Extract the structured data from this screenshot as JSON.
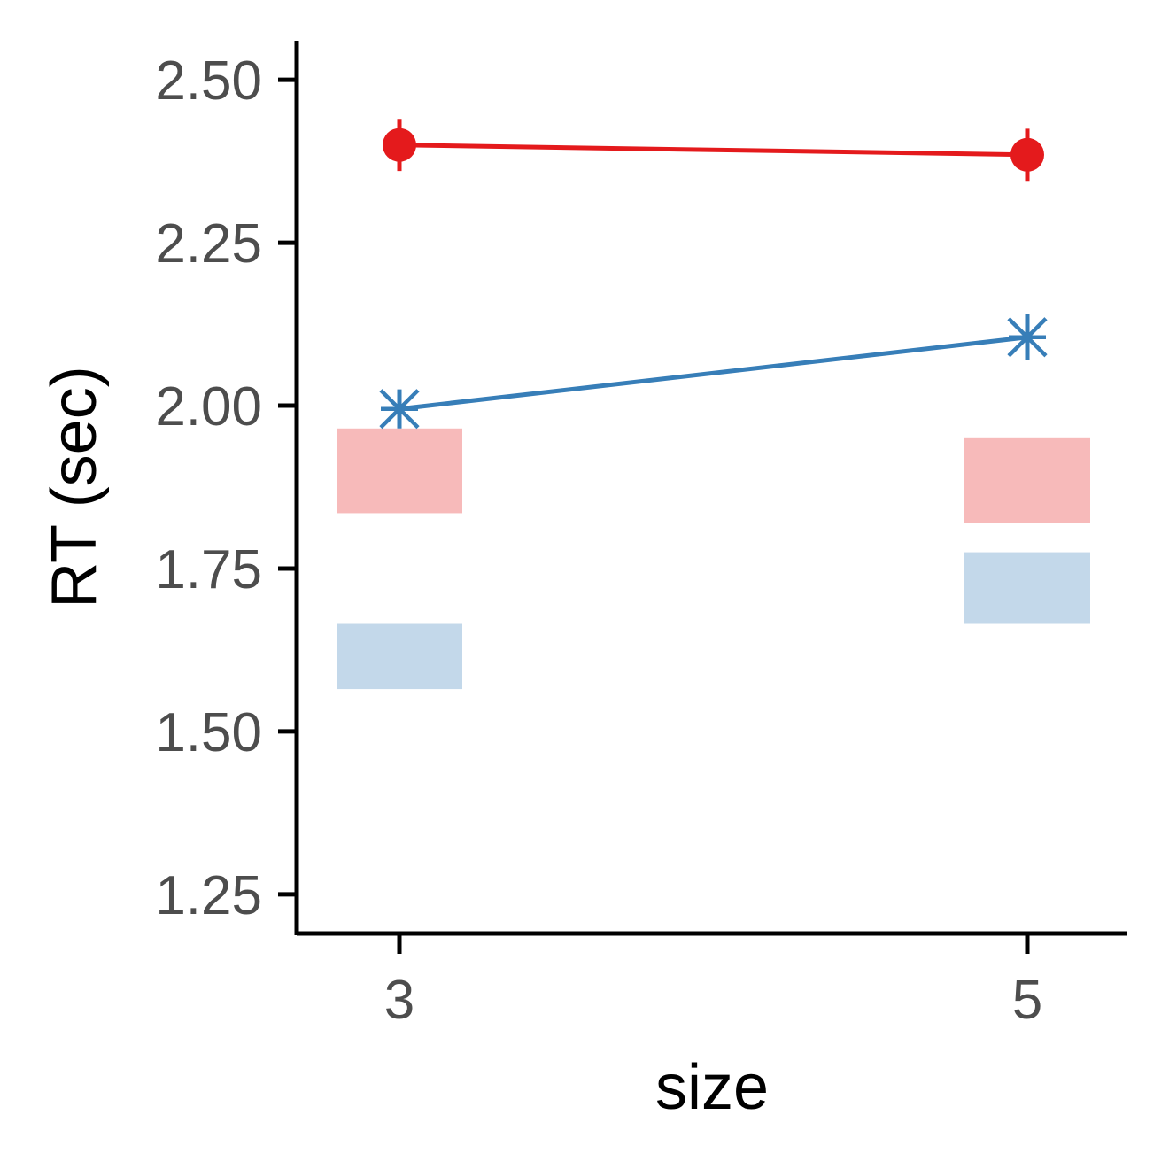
{
  "chart_data": {
    "type": "line",
    "title": "",
    "xlabel": "size",
    "ylabel": "RT (sec)",
    "x": [
      "3",
      "5"
    ],
    "yticks": [
      "1.25",
      "1.50",
      "1.75",
      "2.00",
      "2.25",
      "2.50"
    ],
    "ylim": [
      1.19,
      2.56
    ],
    "grid": false,
    "legend": "none",
    "series": [
      {
        "color": "#e41a1c",
        "marker": "filled-circle",
        "values": [
          2.4,
          2.385
        ],
        "error": [
          0.04,
          0.04
        ],
        "band": [
          [
            1.835,
            1.965
          ],
          [
            1.82,
            1.95
          ]
        ]
      },
      {
        "color": "#377eb8",
        "marker": "asterisk",
        "values": [
          1.995,
          2.105
        ],
        "error": [
          0.03,
          0.035
        ],
        "band": [
          [
            1.565,
            1.665
          ],
          [
            1.665,
            1.775
          ]
        ]
      }
    ]
  }
}
